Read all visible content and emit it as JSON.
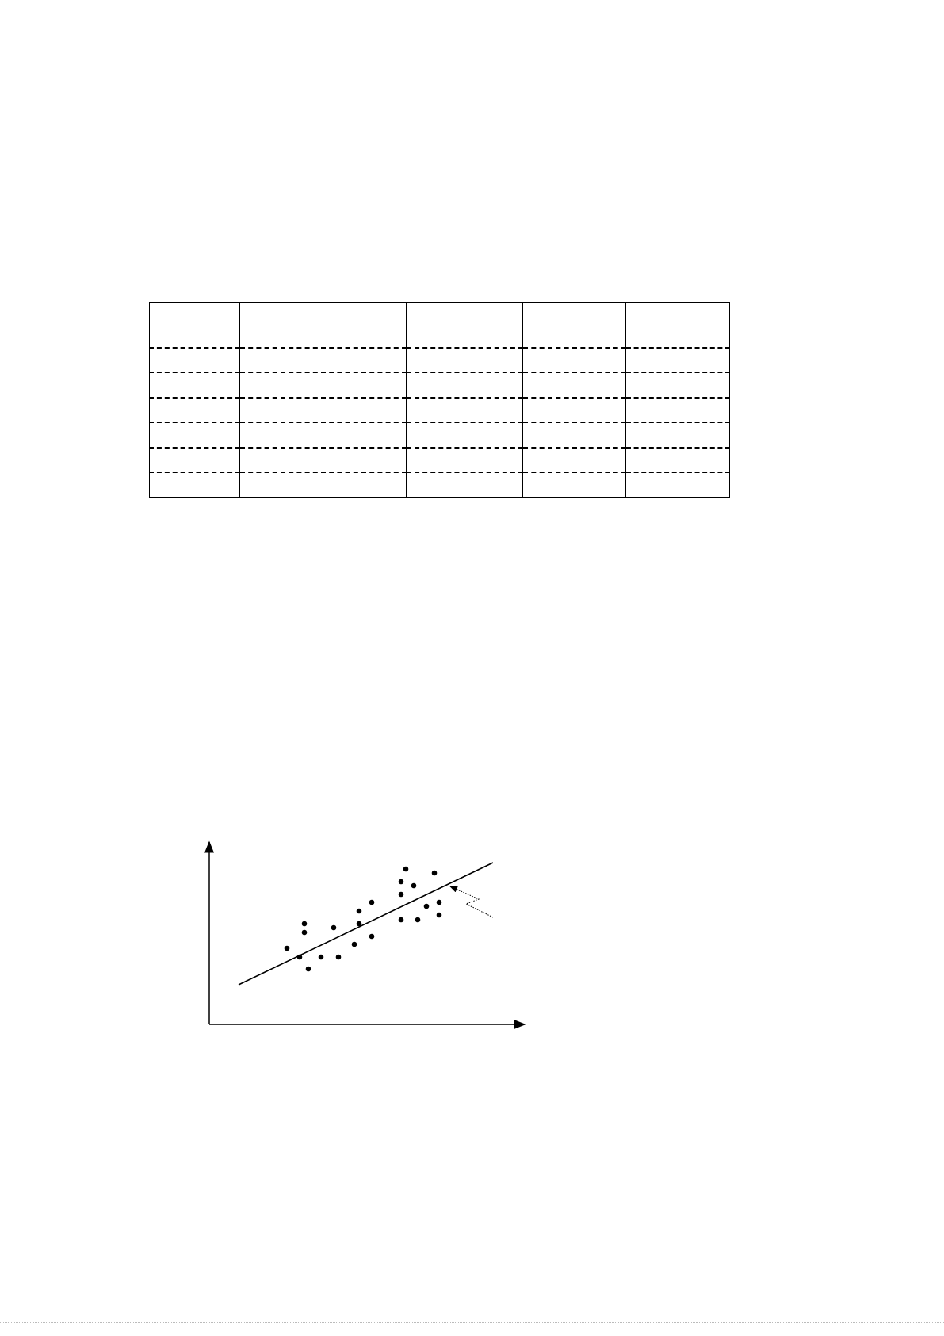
{
  "document": {
    "table": {
      "columns": 5,
      "rows": [
        [
          "",
          "",
          "",
          "",
          ""
        ],
        [
          "",
          "",
          "",
          "",
          ""
        ],
        [
          "",
          "",
          "",
          "",
          ""
        ],
        [
          "",
          "",
          "",
          "",
          ""
        ],
        [
          "",
          "",
          "",
          "",
          ""
        ],
        [
          "",
          "",
          "",
          "",
          ""
        ],
        [
          "",
          "",
          "",
          "",
          ""
        ],
        [
          "",
          "",
          "",
          "",
          ""
        ]
      ]
    }
  },
  "chart_data": {
    "type": "scatter",
    "title": "",
    "xlabel": "",
    "ylabel": "",
    "xlim": [
      0,
      40
    ],
    "ylim": [
      0,
      23
    ],
    "grid": false,
    "points": [
      [
        9.8,
        9.6
      ],
      [
        11.4,
        8.5
      ],
      [
        12,
        12.7
      ],
      [
        12,
        11.6
      ],
      [
        12.5,
        7
      ],
      [
        14.1,
        8.5
      ],
      [
        15.7,
        12.2
      ],
      [
        16.3,
        8.5
      ],
      [
        18.3,
        10.1
      ],
      [
        18.9,
        14.3
      ],
      [
        18.9,
        12.7
      ],
      [
        20.5,
        15.4
      ],
      [
        20.5,
        11.1
      ],
      [
        24.2,
        18
      ],
      [
        24.2,
        16.4
      ],
      [
        24.2,
        13.2
      ],
      [
        24.8,
        19.6
      ],
      [
        25.8,
        17.5
      ],
      [
        26.3,
        13.2
      ],
      [
        27.4,
        14.9
      ],
      [
        28.4,
        19.1
      ],
      [
        29,
        15.4
      ],
      [
        29,
        13.8
      ]
    ],
    "fit_line": [
      [
        3.7,
        5
      ],
      [
        35.8,
        20.4
      ]
    ],
    "annotation": {
      "type": "dotted-zigzag-arrow",
      "points_to": "fit_line"
    },
    "color": "#000000"
  }
}
